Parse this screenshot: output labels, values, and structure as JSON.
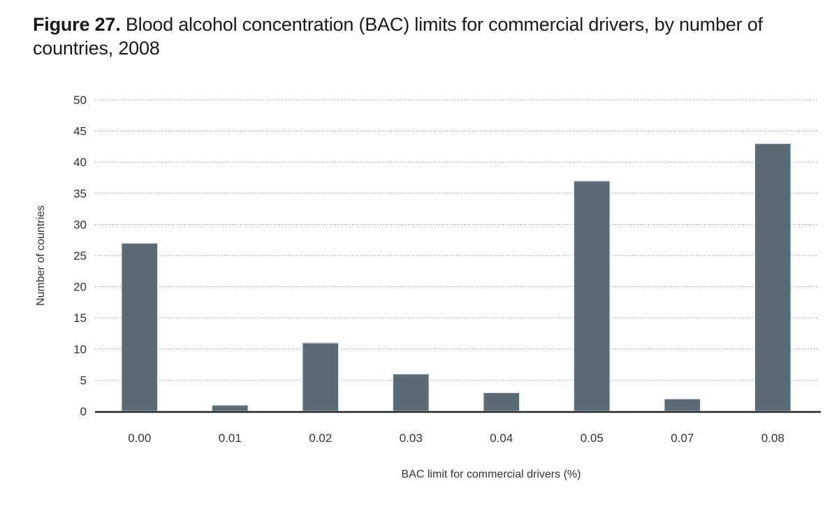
{
  "figure": {
    "title_prefix": "Figure 27.",
    "title_text": "Blood alcohol concentration (BAC) limits for commercial drivers, by number of countries, 2008"
  },
  "chart_data": {
    "type": "bar",
    "title": "Blood alcohol concentration (BAC) limits for commercial drivers, by number of countries, 2008",
    "xlabel": "BAC limit for commercial drivers (%)",
    "ylabel": "Number of countries",
    "categories": [
      "0.00",
      "0.01",
      "0.02",
      "0.03",
      "0.04",
      "0.05",
      "0.07",
      "0.08"
    ],
    "values": [
      27,
      1,
      11,
      6,
      3,
      37,
      2,
      43
    ],
    "ylim": [
      0,
      50
    ],
    "yticks": [
      0,
      5,
      10,
      15,
      20,
      25,
      30,
      35,
      40,
      45,
      50
    ],
    "grid": true,
    "legend": "none",
    "colors": {
      "bar": "#5a6b76",
      "bar_edge": "#e7ecef",
      "grid": "#8a8a8a",
      "axis": "#222222"
    }
  }
}
